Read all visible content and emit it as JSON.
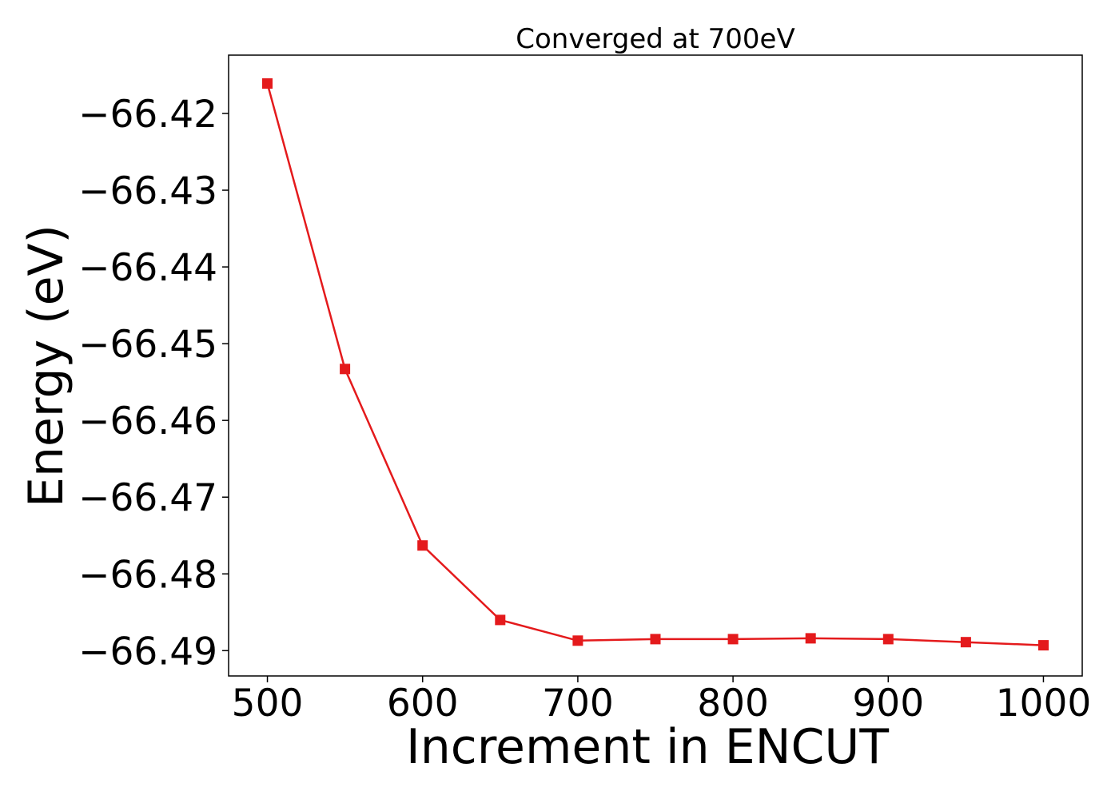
{
  "chart_data": {
    "type": "line",
    "title": "Converged at 700eV",
    "xlabel": "Increment in ENCUT",
    "ylabel": "Energy (eV)",
    "x": [
      500,
      550,
      600,
      650,
      700,
      750,
      800,
      850,
      900,
      950,
      1000
    ],
    "series": [
      {
        "values": [
          -66.4161,
          -66.4533,
          -66.4763,
          -66.486,
          -66.4887,
          -66.4885,
          -66.4885,
          -66.4884,
          -66.4885,
          -66.4889,
          -66.4893
        ],
        "color": "#e41a1c",
        "marker": "square"
      }
    ],
    "xticks": [
      500,
      600,
      700,
      800,
      900,
      1000
    ],
    "xtick_labels": [
      "500",
      "600",
      "700",
      "800",
      "900",
      "1000"
    ],
    "yticks": [
      -66.42,
      -66.43,
      -66.44,
      -66.45,
      -66.46,
      -66.47,
      -66.48,
      -66.49
    ],
    "ytick_labels": [
      "−66.42",
      "−66.43",
      "−66.44",
      "−66.45",
      "−66.46",
      "−66.47",
      "−66.48",
      "−66.49"
    ],
    "xlim": [
      475,
      1025
    ],
    "ylim": [
      -66.4933,
      -66.4124
    ],
    "grid": false,
    "legend": false
  }
}
